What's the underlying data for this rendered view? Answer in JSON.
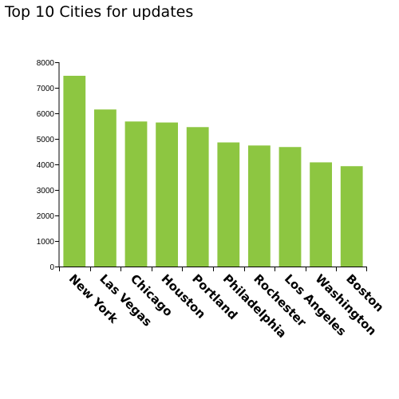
{
  "chart_data": {
    "type": "bar",
    "title": "Top 10 Cities for updates",
    "xlabel": "",
    "ylabel": "",
    "categories": [
      "New York",
      "Las Vegas",
      "Chicago",
      "Houston",
      "Portland",
      "Philadelphia",
      "Rochester",
      "Los Angeles",
      "Washington",
      "Boston"
    ],
    "values": [
      7470,
      6150,
      5680,
      5640,
      5460,
      4860,
      4740,
      4680,
      4080,
      3930
    ],
    "ylim": [
      0,
      8000
    ],
    "yticks": [
      0,
      1000,
      2000,
      3000,
      4000,
      5000,
      6000,
      7000,
      8000
    ],
    "grid": false,
    "bar_color": "#8dc641"
  }
}
